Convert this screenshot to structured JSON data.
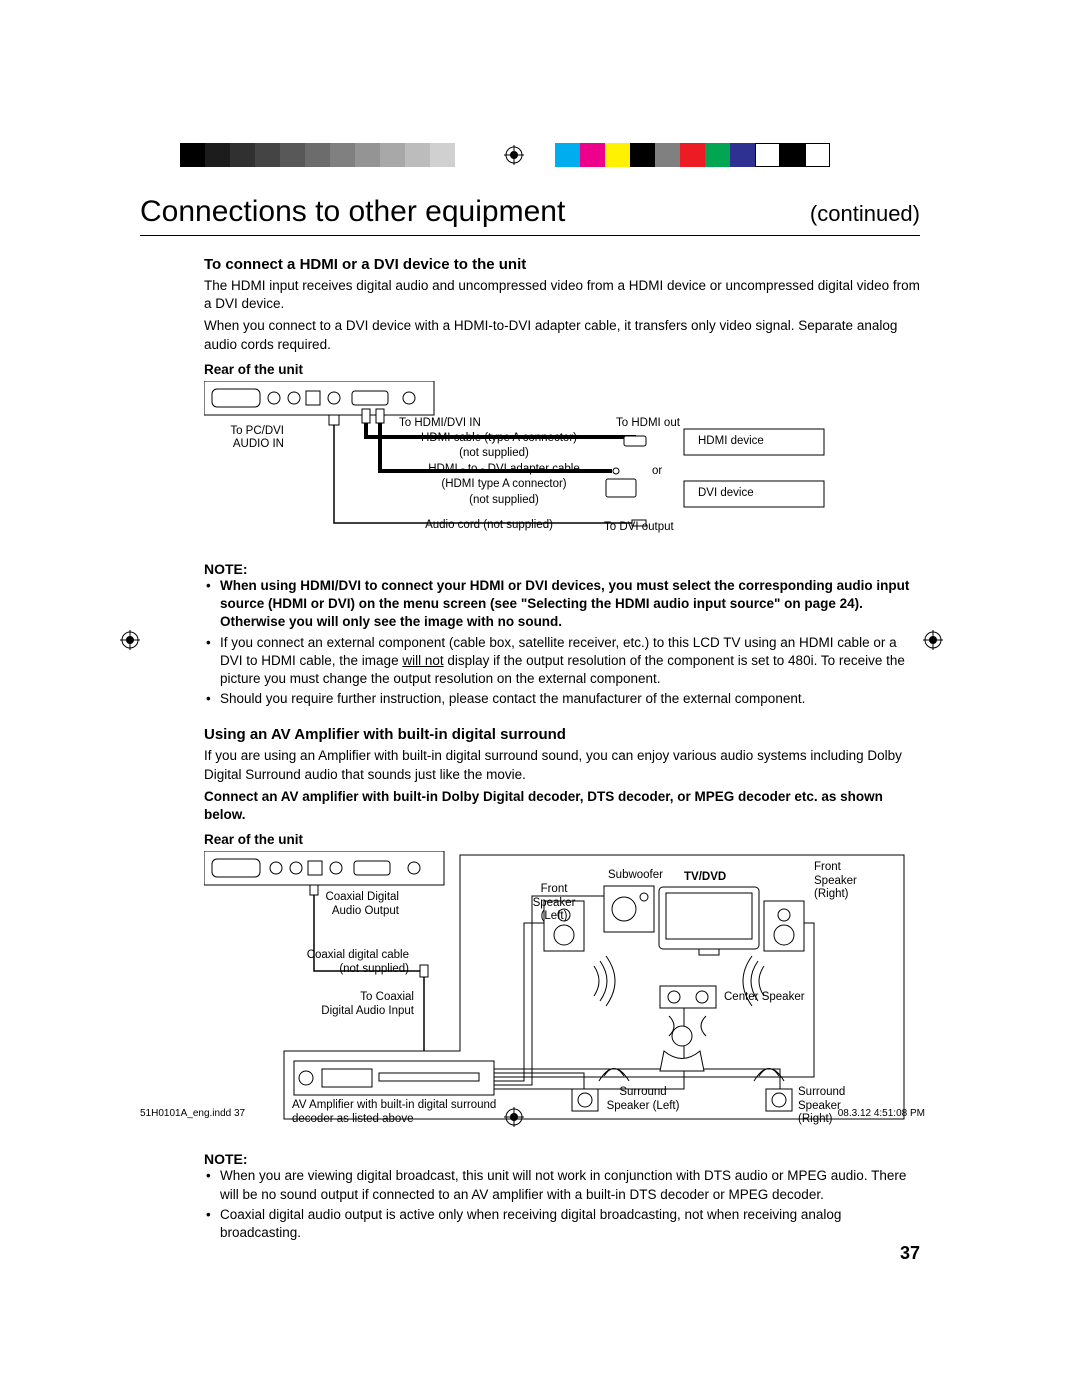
{
  "colorbar_left": [
    "#000000",
    "#1c1c1c",
    "#303030",
    "#444444",
    "#585858",
    "#6c6c6c",
    "#808080",
    "#949494",
    "#a8a8a8",
    "#bcbcbc",
    "#d0d0d0"
  ],
  "colorbar_right": [
    "#00aeef",
    "#ec008c",
    "#fff200",
    "#000000",
    "#808080",
    "#ed1c24",
    "#00a651",
    "#2e3192",
    "#ffffff",
    "#000000",
    "#ffffff"
  ],
  "header": {
    "title": "Connections to other equipment",
    "continued": "(continued)"
  },
  "section1": {
    "heading": "To connect a HDMI or a DVI device to the unit",
    "para1": "The HDMI input receives digital audio and uncompressed video from a HDMI device or uncompressed digital video from a DVI device.",
    "para2": "When you connect to a DVI device with a HDMI-to-DVI adapter cable, it transfers only video signal. Separate analog audio cords required.",
    "rear_label": "Rear of the unit",
    "diagram": {
      "to_pc": "To PC/DVI",
      "audio_in": "AUDIO IN",
      "to_hdmi_dvi_in": "To HDMI/DVI IN",
      "hdmi_cable": "HDMI cable (type A connector)",
      "not_supplied1": "(not supplied)",
      "hdmi_dvi_adapter": "HDMI - to - DVI adapter cable",
      "hdmi_type_a": "(HDMI type A connector)",
      "not_supplied2": "(not supplied)",
      "audio_cord": "Audio cord (not supplied)",
      "to_hdmi_out": "To HDMI out",
      "hdmi_device": "HDMI device",
      "or": "or",
      "dvi_device": "DVI device",
      "to_dvi_output": "To DVI output"
    },
    "note_label": "NOTE:",
    "bullets": [
      {
        "bold": true,
        "text": "When using HDMI/DVI to connect your HDMI or DVI devices, you must select the corresponding audio input source (HDMI or DVI) on the menu screen (see \"Selecting the HDMI audio input source\" on page 24). Otherwise you will only see the image with no sound."
      },
      {
        "text": "If you connect an external component (cable box, satellite receiver, etc.) to this LCD TV using an HDMI cable or a DVI to HDMI cable, the image ",
        "underline": "will not",
        "text2": " display if the output resolution of the component is set to 480i. To receive the picture you must change the output resolution on the external component."
      },
      {
        "text": "Should you require further instruction, please contact the manufacturer of the external component."
      }
    ]
  },
  "section2": {
    "heading": "Using an AV Amplifier with built-in digital surround",
    "para1": "If you are using an Amplifier with built-in digital surround sound, you can enjoy various audio systems including Dolby Digital Surround audio that sounds just like the movie.",
    "para2_bold": "Connect an AV amplifier with built-in Dolby Digital decoder, DTS decoder, or MPEG decoder etc. as shown below.",
    "rear_label": "Rear of the unit",
    "diagram": {
      "coax_out": "Coaxial Digital",
      "audio_output": "Audio Output",
      "coax_cable": "Coaxial digital cable",
      "not_supplied": "(not supplied)",
      "to_coax": "To Coaxial",
      "digital_input": "Digital Audio Input",
      "amp_label": "AV Amplifier with built-in digital surround decoder as listed above",
      "front_left": "Front Speaker (Left)",
      "front_right": "Front Speaker (Right)",
      "subwoofer": "Subwoofer",
      "tv_dvd": "TV/DVD",
      "center": "Center Speaker",
      "surround_left": "Surround Speaker (Left)",
      "surround_right": "Surround Speaker (Right)"
    },
    "note_label": "NOTE:",
    "bullets": [
      {
        "text": "When you are viewing digital broadcast, this unit will not work in conjunction with DTS audio or MPEG audio. There will be no sound output if connected to an AV amplifier with a built-in DTS decoder or MPEG decoder."
      },
      {
        "text": "Coaxial digital audio output is active only when receiving digital broadcasting, not when receiving analog broadcasting."
      }
    ]
  },
  "page_number": "37",
  "footer": {
    "left": "51H0101A_eng.indd   37",
    "right": "08.3.12   4:51:08 PM"
  }
}
